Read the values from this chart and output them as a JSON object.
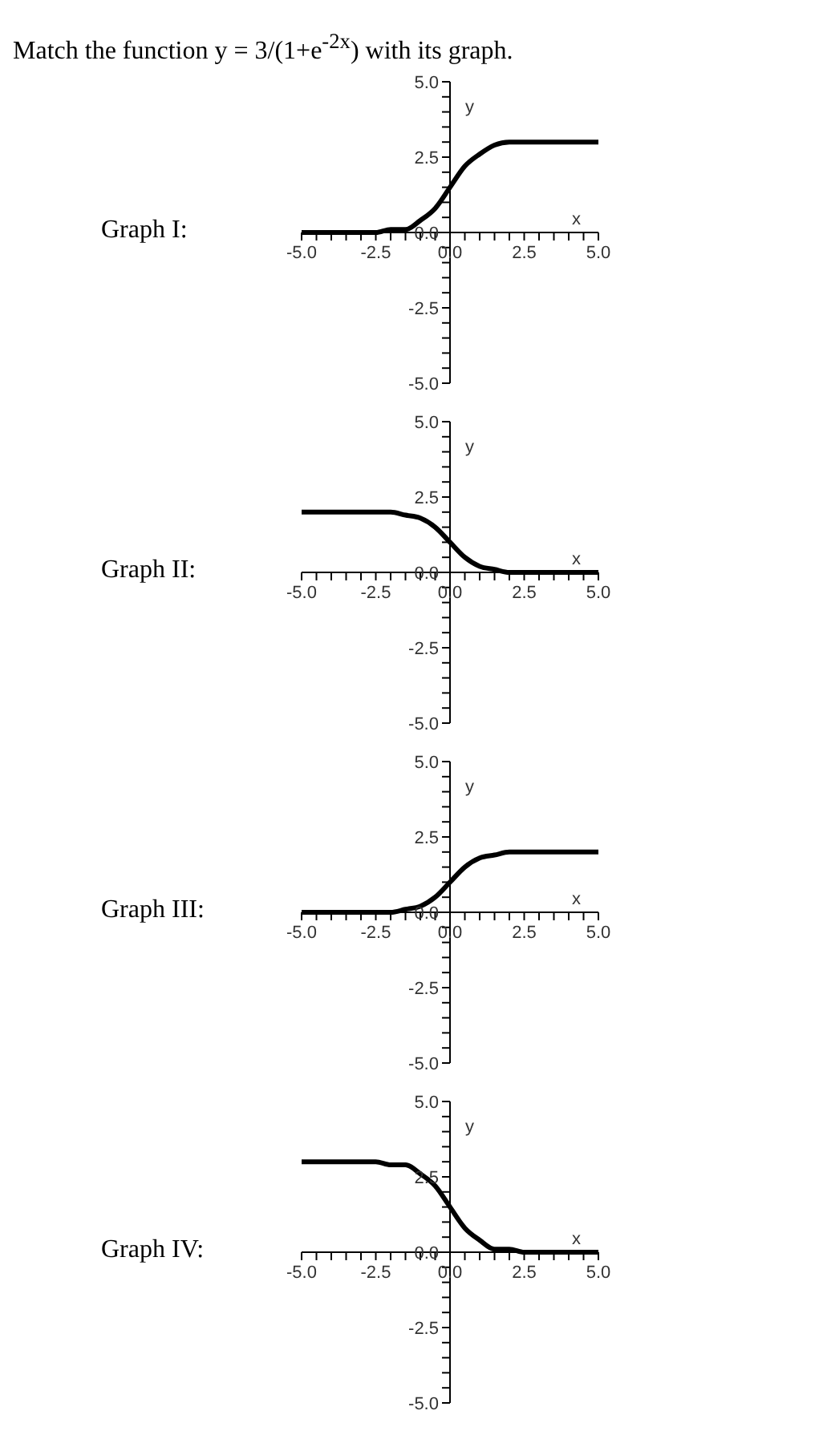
{
  "chart_data": [
    {
      "type": "line",
      "title": "Graph I:",
      "annotations": [
        "Match the function y = 3/(1+e$^{-2x}$) with its graph."
      ],
      "xlabel": "x",
      "ylabel": "y",
      "x": [
        -5,
        -2.5,
        -2,
        -1.5,
        -1,
        -0.5,
        0,
        0.5,
        1,
        1.5,
        2,
        2.5,
        5
      ],
      "series": [
        {
          "color": "#000000",
          "values": [
            0,
            0,
            0.1,
            0.1,
            0.4,
            0.8,
            1.5,
            2.2,
            2.6,
            2.9,
            3,
            3,
            3
          ]
        }
      ],
      "xlim": [
        -5,
        5
      ],
      "ylim": [
        -5,
        5
      ],
      "xticks": [
        {
          "value": -5,
          "label": "-5.0"
        },
        {
          "value": -4.5,
          "label": null
        },
        {
          "value": -4,
          "label": null
        },
        {
          "value": -3.5,
          "label": null
        },
        {
          "value": -3,
          "label": null
        },
        {
          "value": -2.5,
          "label": "-2.5"
        },
        {
          "value": -2,
          "label": null
        },
        {
          "value": -1.5,
          "label": null
        },
        {
          "value": -1,
          "label": null
        },
        {
          "value": -0.5,
          "label": null
        },
        {
          "value": 0,
          "label": "0.0"
        },
        {
          "value": 0.5,
          "label": null
        },
        {
          "value": 1,
          "label": null
        },
        {
          "value": 1.5,
          "label": null
        },
        {
          "value": 2,
          "label": null
        },
        {
          "value": 2.5,
          "label": "2.5"
        },
        {
          "value": 3,
          "label": null
        },
        {
          "value": 3.5,
          "label": null
        },
        {
          "value": 4,
          "label": null
        },
        {
          "value": 4.5,
          "label": null
        },
        {
          "value": 5,
          "label": "5.0"
        }
      ],
      "yticks": [
        {
          "value": -5,
          "label": "-5.0"
        },
        {
          "value": -4.5,
          "label": null
        },
        {
          "value": -4,
          "label": null
        },
        {
          "value": -3.5,
          "label": null
        },
        {
          "value": -3,
          "label": null
        },
        {
          "value": -2.5,
          "label": "-2.5"
        },
        {
          "value": -2,
          "label": null
        },
        {
          "value": -1.5,
          "label": null
        },
        {
          "value": -1,
          "label": null
        },
        {
          "value": -0.5,
          "label": null
        },
        {
          "value": 0,
          "label": "0.0"
        },
        {
          "value": 0.5,
          "label": null
        },
        {
          "value": 1,
          "label": null
        },
        {
          "value": 1.5,
          "label": null
        },
        {
          "value": 2,
          "label": null
        },
        {
          "value": 2.5,
          "label": "2.5"
        },
        {
          "value": 3,
          "label": null
        },
        {
          "value": 3.5,
          "label": null
        },
        {
          "value": 4,
          "label": null
        },
        {
          "value": 4.5,
          "label": null
        },
        {
          "value": 5,
          "label": "5.0"
        }
      ],
      "marker": "none",
      "grid": false,
      "legend": false
    },
    {
      "type": "line",
      "title": "Graph II:",
      "xlabel": "x",
      "ylabel": "y",
      "x": [
        -5,
        -2.5,
        -2,
        -1.5,
        -1,
        -0.5,
        0,
        0.5,
        1,
        1.5,
        2,
        2.5,
        5
      ],
      "series": [
        {
          "color": "#000000",
          "values": [
            2,
            2,
            2,
            1.9,
            1.8,
            1.5,
            1,
            0.5,
            0.2,
            0.1,
            0,
            0,
            0
          ]
        }
      ],
      "xlim": [
        -5,
        5
      ],
      "ylim": [
        -5,
        5
      ],
      "xticks": [
        {
          "value": -5,
          "label": "-5.0"
        },
        {
          "value": -4.5,
          "label": null
        },
        {
          "value": -4,
          "label": null
        },
        {
          "value": -3.5,
          "label": null
        },
        {
          "value": -3,
          "label": null
        },
        {
          "value": -2.5,
          "label": "-2.5"
        },
        {
          "value": -2,
          "label": null
        },
        {
          "value": -1.5,
          "label": null
        },
        {
          "value": -1,
          "label": null
        },
        {
          "value": -0.5,
          "label": null
        },
        {
          "value": 0,
          "label": "0.0"
        },
        {
          "value": 0.5,
          "label": null
        },
        {
          "value": 1,
          "label": null
        },
        {
          "value": 1.5,
          "label": null
        },
        {
          "value": 2,
          "label": null
        },
        {
          "value": 2.5,
          "label": "2.5"
        },
        {
          "value": 3,
          "label": null
        },
        {
          "value": 3.5,
          "label": null
        },
        {
          "value": 4,
          "label": null
        },
        {
          "value": 4.5,
          "label": null
        },
        {
          "value": 5,
          "label": "5.0"
        }
      ],
      "yticks": [
        {
          "value": -5,
          "label": "-5.0"
        },
        {
          "value": -4.5,
          "label": null
        },
        {
          "value": -4,
          "label": null
        },
        {
          "value": -3.5,
          "label": null
        },
        {
          "value": -3,
          "label": null
        },
        {
          "value": -2.5,
          "label": "-2.5"
        },
        {
          "value": -2,
          "label": null
        },
        {
          "value": -1.5,
          "label": null
        },
        {
          "value": -1,
          "label": null
        },
        {
          "value": -0.5,
          "label": null
        },
        {
          "value": 0,
          "label": "0.0"
        },
        {
          "value": 0.5,
          "label": null
        },
        {
          "value": 1,
          "label": null
        },
        {
          "value": 1.5,
          "label": null
        },
        {
          "value": 2,
          "label": null
        },
        {
          "value": 2.5,
          "label": "2.5"
        },
        {
          "value": 3,
          "label": null
        },
        {
          "value": 3.5,
          "label": null
        },
        {
          "value": 4,
          "label": null
        },
        {
          "value": 4.5,
          "label": null
        },
        {
          "value": 5,
          "label": "5.0"
        }
      ],
      "marker": "none",
      "grid": false,
      "legend": false
    },
    {
      "type": "line",
      "title": "Graph III:",
      "xlabel": "x",
      "ylabel": "y",
      "x": [
        -5,
        -2.5,
        -2,
        -1.5,
        -1,
        -0.5,
        0,
        0.5,
        1,
        1.5,
        2,
        2.5,
        5
      ],
      "series": [
        {
          "color": "#000000",
          "values": [
            0,
            0,
            0,
            0.1,
            0.2,
            0.5,
            1,
            1.5,
            1.8,
            1.9,
            2,
            2,
            2
          ]
        }
      ],
      "xlim": [
        -5,
        5
      ],
      "ylim": [
        -5,
        5
      ],
      "xticks": [
        {
          "value": -5,
          "label": "-5.0"
        },
        {
          "value": -4.5,
          "label": null
        },
        {
          "value": -4,
          "label": null
        },
        {
          "value": -3.5,
          "label": null
        },
        {
          "value": -3,
          "label": null
        },
        {
          "value": -2.5,
          "label": "-2.5"
        },
        {
          "value": -2,
          "label": null
        },
        {
          "value": -1.5,
          "label": null
        },
        {
          "value": -1,
          "label": null
        },
        {
          "value": -0.5,
          "label": null
        },
        {
          "value": 0,
          "label": "0.0"
        },
        {
          "value": 0.5,
          "label": null
        },
        {
          "value": 1,
          "label": null
        },
        {
          "value": 1.5,
          "label": null
        },
        {
          "value": 2,
          "label": null
        },
        {
          "value": 2.5,
          "label": "2.5"
        },
        {
          "value": 3,
          "label": null
        },
        {
          "value": 3.5,
          "label": null
        },
        {
          "value": 4,
          "label": null
        },
        {
          "value": 4.5,
          "label": null
        },
        {
          "value": 5,
          "label": "5.0"
        }
      ],
      "yticks": [
        {
          "value": -5,
          "label": "-5.0"
        },
        {
          "value": -4.5,
          "label": null
        },
        {
          "value": -4,
          "label": null
        },
        {
          "value": -3.5,
          "label": null
        },
        {
          "value": -3,
          "label": null
        },
        {
          "value": -2.5,
          "label": "-2.5"
        },
        {
          "value": -2,
          "label": null
        },
        {
          "value": -1.5,
          "label": null
        },
        {
          "value": -1,
          "label": null
        },
        {
          "value": -0.5,
          "label": null
        },
        {
          "value": 0,
          "label": "0.0"
        },
        {
          "value": 0.5,
          "label": null
        },
        {
          "value": 1,
          "label": null
        },
        {
          "value": 1.5,
          "label": null
        },
        {
          "value": 2,
          "label": null
        },
        {
          "value": 2.5,
          "label": "2.5"
        },
        {
          "value": 3,
          "label": null
        },
        {
          "value": 3.5,
          "label": null
        },
        {
          "value": 4,
          "label": null
        },
        {
          "value": 4.5,
          "label": null
        },
        {
          "value": 5,
          "label": "5.0"
        }
      ],
      "marker": "none",
      "grid": false,
      "legend": false
    },
    {
      "type": "line",
      "title": "Graph IV:",
      "xlabel": "x",
      "ylabel": "y",
      "x": [
        -5,
        -2.5,
        -2,
        -1.5,
        -1,
        -0.5,
        0,
        0.5,
        1,
        1.5,
        2,
        2.5,
        5
      ],
      "series": [
        {
          "color": "#000000",
          "values": [
            3,
            3,
            2.9,
            2.9,
            2.6,
            2.2,
            1.5,
            0.8,
            0.4,
            0.1,
            0.1,
            0,
            0
          ]
        }
      ],
      "xlim": [
        -5,
        5
      ],
      "ylim": [
        -5,
        5
      ],
      "xticks": [
        {
          "value": -5,
          "label": "-5.0"
        },
        {
          "value": -4.5,
          "label": null
        },
        {
          "value": -4,
          "label": null
        },
        {
          "value": -3.5,
          "label": null
        },
        {
          "value": -3,
          "label": null
        },
        {
          "value": -2.5,
          "label": "-2.5"
        },
        {
          "value": -2,
          "label": null
        },
        {
          "value": -1.5,
          "label": null
        },
        {
          "value": -1,
          "label": null
        },
        {
          "value": -0.5,
          "label": null
        },
        {
          "value": 0,
          "label": "0.0"
        },
        {
          "value": 0.5,
          "label": null
        },
        {
          "value": 1,
          "label": null
        },
        {
          "value": 1.5,
          "label": null
        },
        {
          "value": 2,
          "label": null
        },
        {
          "value": 2.5,
          "label": "2.5"
        },
        {
          "value": 3,
          "label": null
        },
        {
          "value": 3.5,
          "label": null
        },
        {
          "value": 4,
          "label": null
        },
        {
          "value": 4.5,
          "label": null
        },
        {
          "value": 5,
          "label": "5.0"
        }
      ],
      "yticks": [
        {
          "value": -5,
          "label": "-5.0"
        },
        {
          "value": -4.5,
          "label": null
        },
        {
          "value": -4,
          "label": null
        },
        {
          "value": -3.5,
          "label": null
        },
        {
          "value": -3,
          "label": null
        },
        {
          "value": -2.5,
          "label": "-2.5"
        },
        {
          "value": -2,
          "label": null
        },
        {
          "value": -1.5,
          "label": null
        },
        {
          "value": -1,
          "label": null
        },
        {
          "value": -0.5,
          "label": null
        },
        {
          "value": 0,
          "label": "0.0"
        },
        {
          "value": 0.5,
          "label": null
        },
        {
          "value": 1,
          "label": null
        },
        {
          "value": 1.5,
          "label": null
        },
        {
          "value": 2,
          "label": null
        },
        {
          "value": 2.5,
          "label": "2.5"
        },
        {
          "value": 3,
          "label": null
        },
        {
          "value": 3.5,
          "label": null
        },
        {
          "value": 4,
          "label": null
        },
        {
          "value": 4.5,
          "label": null
        },
        {
          "value": 5,
          "label": "5.0"
        }
      ],
      "marker": "none",
      "grid": false,
      "legend": false
    }
  ]
}
